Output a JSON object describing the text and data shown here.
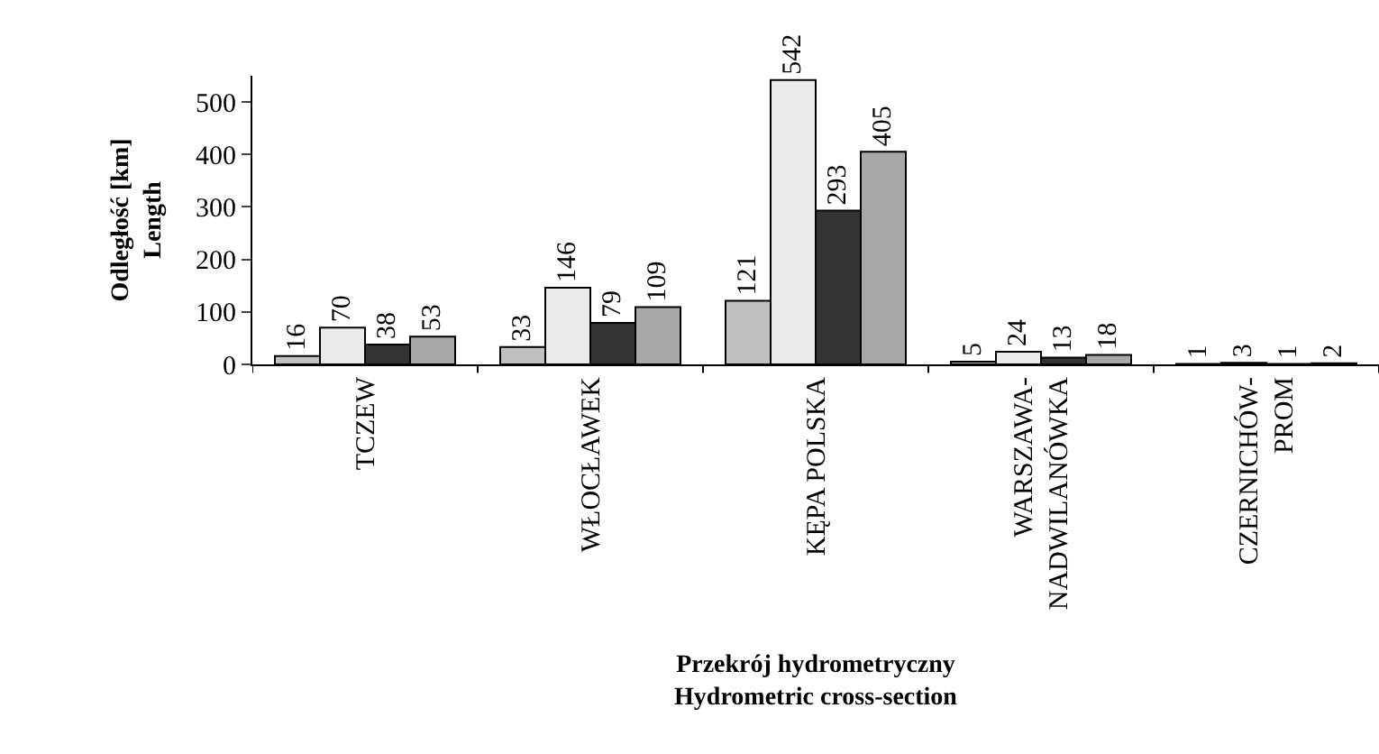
{
  "chart_data": {
    "type": "bar",
    "xlabel": "Przekrój hydrometryczny\nHydrometric cross-section",
    "ylabel": "Odległość [km]\nLength",
    "categories": [
      "TCZEW",
      "WŁOCŁAWEK",
      "KĘPA POLSKA",
      "WARSZAWA-\nNADWILANÓWKA",
      "CZERNICHÓW-\nPROM"
    ],
    "series": [
      {
        "color": "#c0c0c0",
        "values": [
          16,
          33,
          121,
          5,
          1
        ]
      },
      {
        "color": "#eaeaea",
        "values": [
          70,
          146,
          542,
          24,
          3
        ]
      },
      {
        "color": "#333333",
        "values": [
          38,
          79,
          293,
          13,
          1
        ]
      },
      {
        "color": "#a8a8a8",
        "values": [
          53,
          109,
          405,
          18,
          2
        ]
      }
    ],
    "ylim": [
      0,
      550
    ],
    "yticks": [
      0,
      100,
      200,
      300,
      400,
      500
    ],
    "data_labels": true
  }
}
